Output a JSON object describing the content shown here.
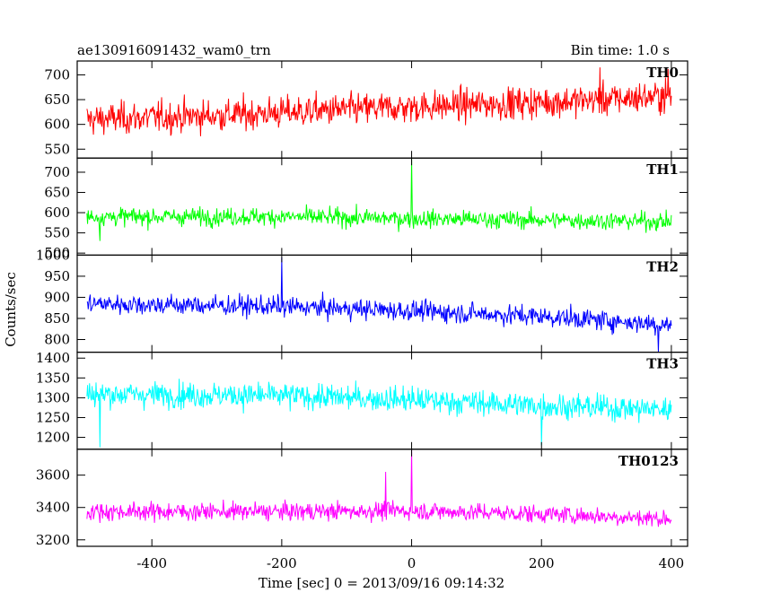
{
  "chart_data": {
    "type": "line",
    "header_left": "ae130916091432_wam0_trn",
    "header_right": "Bin time: 1.0 s",
    "xlabel": "Time [sec] 0 = 2013/09/16 09:14:32",
    "ylabel": "Counts/sec",
    "xlim": [
      -515,
      425
    ],
    "x_ticks": [
      -400,
      -200,
      0,
      200,
      400
    ],
    "x_range": [
      -500,
      400
    ],
    "panels": [
      {
        "name": "TH0",
        "color": "#ff0000",
        "ylim": [
          532,
          728
        ],
        "y_ticks": [
          550,
          600,
          650,
          700
        ],
        "trend": [
          [
            -500,
            610
          ],
          [
            -300,
            618
          ],
          [
            -100,
            630
          ],
          [
            100,
            640
          ],
          [
            300,
            650
          ],
          [
            400,
            658
          ]
        ],
        "noise": 32,
        "spikes": [
          [
            290,
            715
          ],
          [
            395,
            712
          ]
        ]
      },
      {
        "name": "TH1",
        "color": "#00ff00",
        "ylim": [
          495,
          735
        ],
        "y_ticks": [
          500,
          550,
          600,
          650,
          700
        ],
        "trend": [
          [
            -500,
            590
          ],
          [
            -200,
            590
          ],
          [
            0,
            585
          ],
          [
            200,
            582
          ],
          [
            400,
            578
          ]
        ],
        "noise": 22,
        "spikes": [
          [
            0,
            735
          ],
          [
            -480,
            530
          ]
        ]
      },
      {
        "name": "TH2",
        "color": "#0000ff",
        "ylim": [
          770,
          1000
        ],
        "y_ticks": [
          800,
          850,
          900,
          950,
          1000
        ],
        "trend": [
          [
            -500,
            885
          ],
          [
            -200,
            878
          ],
          [
            0,
            868
          ],
          [
            200,
            855
          ],
          [
            400,
            835
          ]
        ],
        "noise": 24,
        "spikes": [
          [
            -200,
            995
          ],
          [
            380,
            770
          ]
        ]
      },
      {
        "name": "TH3",
        "color": "#00ffff",
        "ylim": [
          1170,
          1415
        ],
        "y_ticks": [
          1200,
          1250,
          1300,
          1350,
          1400
        ],
        "trend": [
          [
            -500,
            1310
          ],
          [
            -200,
            1305
          ],
          [
            0,
            1295
          ],
          [
            200,
            1280
          ],
          [
            400,
            1270
          ]
        ],
        "noise": 32,
        "spikes": [
          [
            -480,
            1175
          ],
          [
            200,
            1180
          ]
        ]
      },
      {
        "name": "TH0123",
        "color": "#ff00ff",
        "ylim": [
          3160,
          3760
        ],
        "y_ticks": [
          3200,
          3400,
          3600
        ],
        "trend": [
          [
            -500,
            3375
          ],
          [
            -200,
            3375
          ],
          [
            0,
            3380
          ],
          [
            200,
            3360
          ],
          [
            400,
            3330
          ]
        ],
        "noise": 55,
        "spikes": [
          [
            0,
            3760
          ],
          [
            -40,
            3620
          ]
        ]
      }
    ]
  }
}
